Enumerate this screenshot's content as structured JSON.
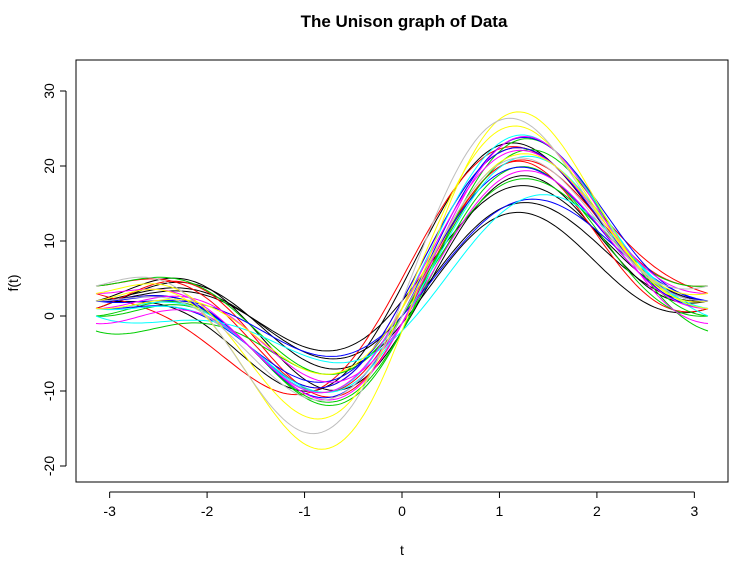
{
  "chart_data": {
    "type": "line",
    "title": "The Unison graph of Data",
    "xlabel": "t",
    "ylabel": "f(t)",
    "xlim": [
      -3.14,
      3.14
    ],
    "ylim": [
      -20,
      32
    ],
    "x_ticks": [
      -3,
      -2,
      -1,
      0,
      1,
      2,
      3
    ],
    "x_tick_labels": [
      "-3",
      "-2",
      "-1",
      "0",
      "1",
      "2",
      "3"
    ],
    "y_ticks": [
      -20,
      -10,
      0,
      10,
      20,
      30
    ],
    "y_tick_labels": [
      "-20",
      "-10",
      "0",
      "10",
      "20",
      "30"
    ],
    "grid": false,
    "legend": "none",
    "model": "f(t) = c + a1*sin(t) + b1*cos(t) + a2*sin(2t) + b2*cos(2t)",
    "series": [
      {
        "color": "#000000",
        "c": 4,
        "a1": 9,
        "b1": -2,
        "a2": 6,
        "b2": -4
      },
      {
        "color": "#000000",
        "c": 4,
        "a1": 7,
        "b1": -1,
        "a2": 4,
        "b2": -3
      },
      {
        "color": "#000000",
        "c": 5,
        "a1": 13,
        "b1": 1,
        "a2": 6,
        "b2": -2
      },
      {
        "color": "#000000",
        "c": 3,
        "a1": 6,
        "b1": -1,
        "a2": 5,
        "b2": -3
      },
      {
        "color": "#000000",
        "c": 5,
        "a1": 8,
        "b1": 0,
        "a2": 4,
        "b2": -3
      },
      {
        "color": "#ff0000",
        "c": 5,
        "a1": 14,
        "b1": 1,
        "a2": 5,
        "b2": -1
      },
      {
        "color": "#ff0000",
        "c": 4,
        "a1": 10,
        "b1": -1,
        "a2": 7,
        "b2": -4
      },
      {
        "color": "#ff0000",
        "c": 5,
        "a1": 11,
        "b1": -2,
        "a2": 6,
        "b2": -3
      },
      {
        "color": "#ff0000",
        "c": 5,
        "a1": 12,
        "b1": 0,
        "a2": 6,
        "b2": -3
      },
      {
        "color": "#00cd00",
        "c": 4,
        "a1": 13,
        "b1": -1,
        "a2": 6,
        "b2": -5
      },
      {
        "color": "#00cd00",
        "c": 5,
        "a1": 9,
        "b1": -2,
        "a2": 5,
        "b2": -3
      },
      {
        "color": "#00cd00",
        "c": 4,
        "a1": 12,
        "b1": 1,
        "a2": 4,
        "b2": -5
      },
      {
        "color": "#00cd00",
        "c": 3,
        "a1": 11,
        "b1": -1,
        "a2": 6,
        "b2": -4
      },
      {
        "color": "#0000ff",
        "c": 5,
        "a1": 12,
        "b1": 0,
        "a2": 6,
        "b2": -3
      },
      {
        "color": "#0000ff",
        "c": 4,
        "a1": 8,
        "b1": -1,
        "a2": 3,
        "b2": -3
      },
      {
        "color": "#0000ff",
        "c": 5,
        "a1": 13,
        "b1": -1,
        "a2": 6,
        "b2": -4
      },
      {
        "color": "#0000ff",
        "c": 4,
        "a1": 11,
        "b1": 0,
        "a2": 5,
        "b2": -3
      },
      {
        "color": "#00ffff",
        "c": 3,
        "a1": 9,
        "b1": -1,
        "a2": 2,
        "b2": -4
      },
      {
        "color": "#00ffff",
        "c": 5,
        "a1": 13,
        "b1": 0,
        "a2": 6,
        "b2": -4
      },
      {
        "color": "#00ffff",
        "c": 4,
        "a1": 12,
        "b1": -1,
        "a2": 5,
        "b2": -4
      },
      {
        "color": "#ff00ff",
        "c": 5,
        "a1": 12,
        "b1": -1,
        "a2": 6,
        "b2": -3
      },
      {
        "color": "#ff00ff",
        "c": 4,
        "a1": 13,
        "b1": 0,
        "a2": 6,
        "b2": -5
      },
      {
        "color": "#ff00ff",
        "c": 4,
        "a1": 10,
        "b1": -1,
        "a2": 5,
        "b2": -4
      },
      {
        "color": "#ffff00",
        "c": 5,
        "a1": 14,
        "b1": -1,
        "a2": 8,
        "b2": -3
      },
      {
        "color": "#ffff00",
        "c": 4,
        "a1": 16,
        "b1": -2,
        "a2": 9,
        "b2": -4
      },
      {
        "color": "#ffff00",
        "c": 5,
        "a1": 11,
        "b1": 0,
        "a2": 5,
        "b2": -4
      },
      {
        "color": "#bebebe",
        "c": 5,
        "a1": 15,
        "b1": -1,
        "a2": 9,
        "b2": -2
      },
      {
        "color": "#bebebe",
        "c": 4,
        "a1": 12,
        "b1": -1,
        "a2": 6,
        "b2": -3
      }
    ]
  }
}
